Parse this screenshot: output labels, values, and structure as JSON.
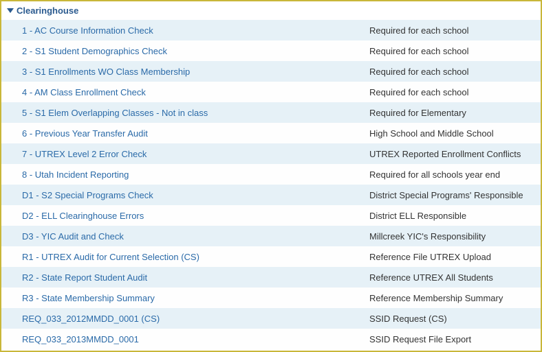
{
  "header": {
    "title": "Clearinghouse"
  },
  "colors": {
    "border": "#c9b739",
    "header_text": "#2a5a8f",
    "link_text": "#2a6aa8",
    "desc_text": "#333333",
    "row_even_bg": "#e6f1f7",
    "row_odd_bg": "#fefefe"
  },
  "rows": [
    {
      "label": "1 - AC Course Information Check",
      "desc": "Required for each school"
    },
    {
      "label": "2 - S1 Student Demographics Check",
      "desc": "Required for each school"
    },
    {
      "label": "3 - S1 Enrollments WO Class Membership",
      "desc": "Required for each school"
    },
    {
      "label": "4 - AM Class Enrollment Check",
      "desc": "Required for each school"
    },
    {
      "label": "5 - S1 Elem Overlapping Classes - Not in class",
      "desc": "Required for Elementary"
    },
    {
      "label": "6 - Previous Year Transfer Audit",
      "desc": "High School and Middle School"
    },
    {
      "label": "7 - UTREX Level 2 Error Check",
      "desc": "UTREX Reported Enrollment Conflicts"
    },
    {
      "label": "8 - Utah Incident Reporting",
      "desc": "Required for all schools year end"
    },
    {
      "label": "D1 - S2 Special Programs Check",
      "desc": "District Special Programs' Responsible"
    },
    {
      "label": "D2 - ELL Clearinghouse Errors",
      "desc": "District ELL Responsible"
    },
    {
      "label": "D3 - YIC Audit and Check",
      "desc": "Millcreek YIC's Responsibility"
    },
    {
      "label": "R1 - UTREX Audit for Current Selection (CS)",
      "desc": "Reference File UTREX Upload"
    },
    {
      "label": "R2 - State Report Student Audit",
      "desc": "Reference UTREX All Students"
    },
    {
      "label": "R3 - State Membership Summary",
      "desc": "Reference Membership Summary"
    },
    {
      "label": "REQ_033_2012MMDD_0001 (CS)",
      "desc": "SSID Request (CS)"
    },
    {
      "label": "REQ_033_2013MMDD_0001",
      "desc": "SSID Request File Export"
    }
  ]
}
